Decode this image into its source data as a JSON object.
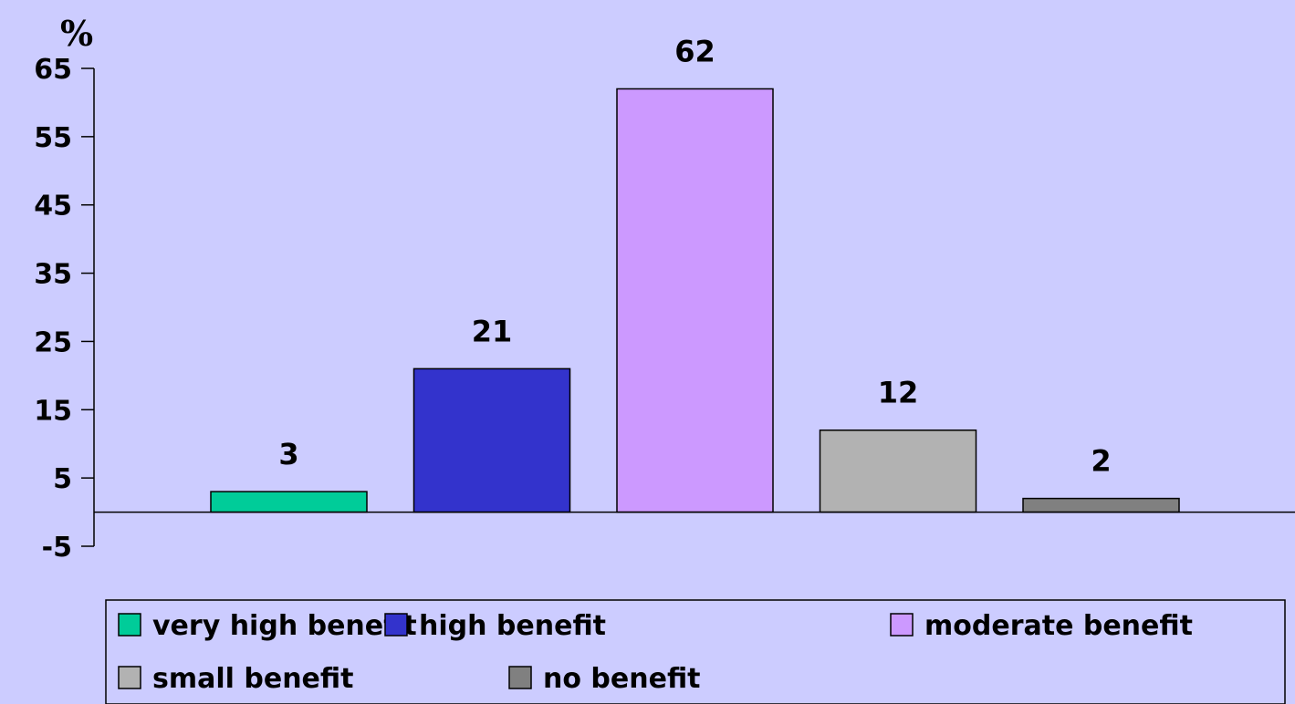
{
  "chart_data": {
    "type": "bar",
    "ylabel": "%",
    "ylim": [
      -5,
      65
    ],
    "yticks": [
      65,
      55,
      45,
      35,
      25,
      15,
      5,
      -5
    ],
    "grid": false,
    "legend_position": "bottom",
    "series": [
      {
        "name": "very high benefit",
        "value": 3,
        "color": "#00cc99"
      },
      {
        "name": "high benefit",
        "value": 21,
        "color": "#3333cc"
      },
      {
        "name": "moderate benefit",
        "value": 62,
        "color": "#cc99ff"
      },
      {
        "name": "small benefit",
        "value": 12,
        "color": "#b2b2b2"
      },
      {
        "name": "no benefit",
        "value": 2,
        "color": "#808080"
      }
    ]
  }
}
